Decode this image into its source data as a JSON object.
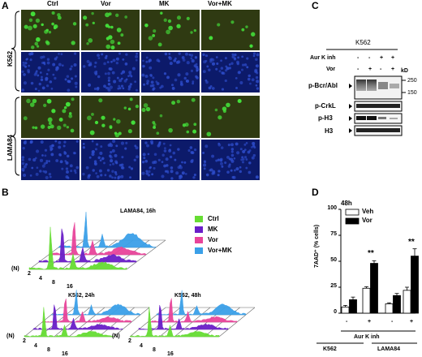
{
  "figure": {
    "panel_labels": {
      "a": "A",
      "b": "B",
      "c": "C",
      "d": "D"
    }
  },
  "panel_a": {
    "columns": [
      "Ctrl",
      "Vor",
      "MK",
      "Vor+MK"
    ],
    "row_groups": [
      "K562",
      "LAMA84"
    ],
    "colors": {
      "green_bg": "#2f3a12",
      "green_cell": "#44e03a",
      "blue_bg": "#0c1a6a",
      "blue_cell": "#2f4fd0"
    },
    "green_density": [
      [
        0.9,
        0.75,
        0.55,
        0.25
      ],
      [
        0.9,
        0.7,
        0.6,
        0.25
      ]
    ]
  },
  "panel_b": {
    "legend": [
      {
        "name": "Ctrl",
        "color": "#66dd33"
      },
      {
        "name": "MK",
        "color": "#6a1ec8"
      },
      {
        "name": "Vor",
        "color": "#e8449a"
      },
      {
        "name": "Vor+MK",
        "color": "#3aa0e8"
      }
    ],
    "plots": [
      {
        "title": "LAMA84, 16h"
      },
      {
        "title": "K562, 24h"
      },
      {
        "title": "K562, 48h"
      }
    ],
    "axis_label": "(N)",
    "ticks": [
      "2",
      "4",
      "8",
      "16"
    ]
  },
  "panel_c": {
    "cell_line": "K562",
    "treatment_rows": [
      {
        "label": "Aur K inh",
        "signs": [
          "-",
          "-",
          "+",
          "+"
        ]
      },
      {
        "label": "Vor",
        "signs": [
          "-",
          "+",
          "-",
          "+"
        ]
      }
    ],
    "kd_label": "kD",
    "markers": [
      "250",
      "150"
    ],
    "blots": [
      "p-Bcr/Abl",
      "p-CrkL",
      "p-H3",
      "H3"
    ]
  },
  "chart_data": {
    "type": "bar",
    "title": "48h",
    "ylabel": "7AAD⁺ (% cells)",
    "ylim": [
      0,
      100
    ],
    "yticks": [
      0,
      25,
      50,
      75,
      100
    ],
    "legend_position": "top-left",
    "groups": [
      {
        "cell_line": "K562",
        "conditions": [
          "-",
          "+"
        ]
      },
      {
        "cell_line": "LAMA84",
        "conditions": [
          "-",
          "+"
        ]
      }
    ],
    "xlabel": "Aur K inh",
    "series": [
      {
        "name": "Veh",
        "color": "#ffffff",
        "values": [
          6,
          24,
          9,
          22
        ],
        "errors": [
          1.5,
          1.5,
          1,
          3
        ]
      },
      {
        "name": "Vor",
        "color": "#000000",
        "values": [
          13,
          48,
          17,
          55
        ],
        "errors": [
          2.5,
          2.5,
          2,
          7
        ]
      }
    ],
    "annotations": [
      "",
      "**",
      "",
      "**"
    ]
  }
}
